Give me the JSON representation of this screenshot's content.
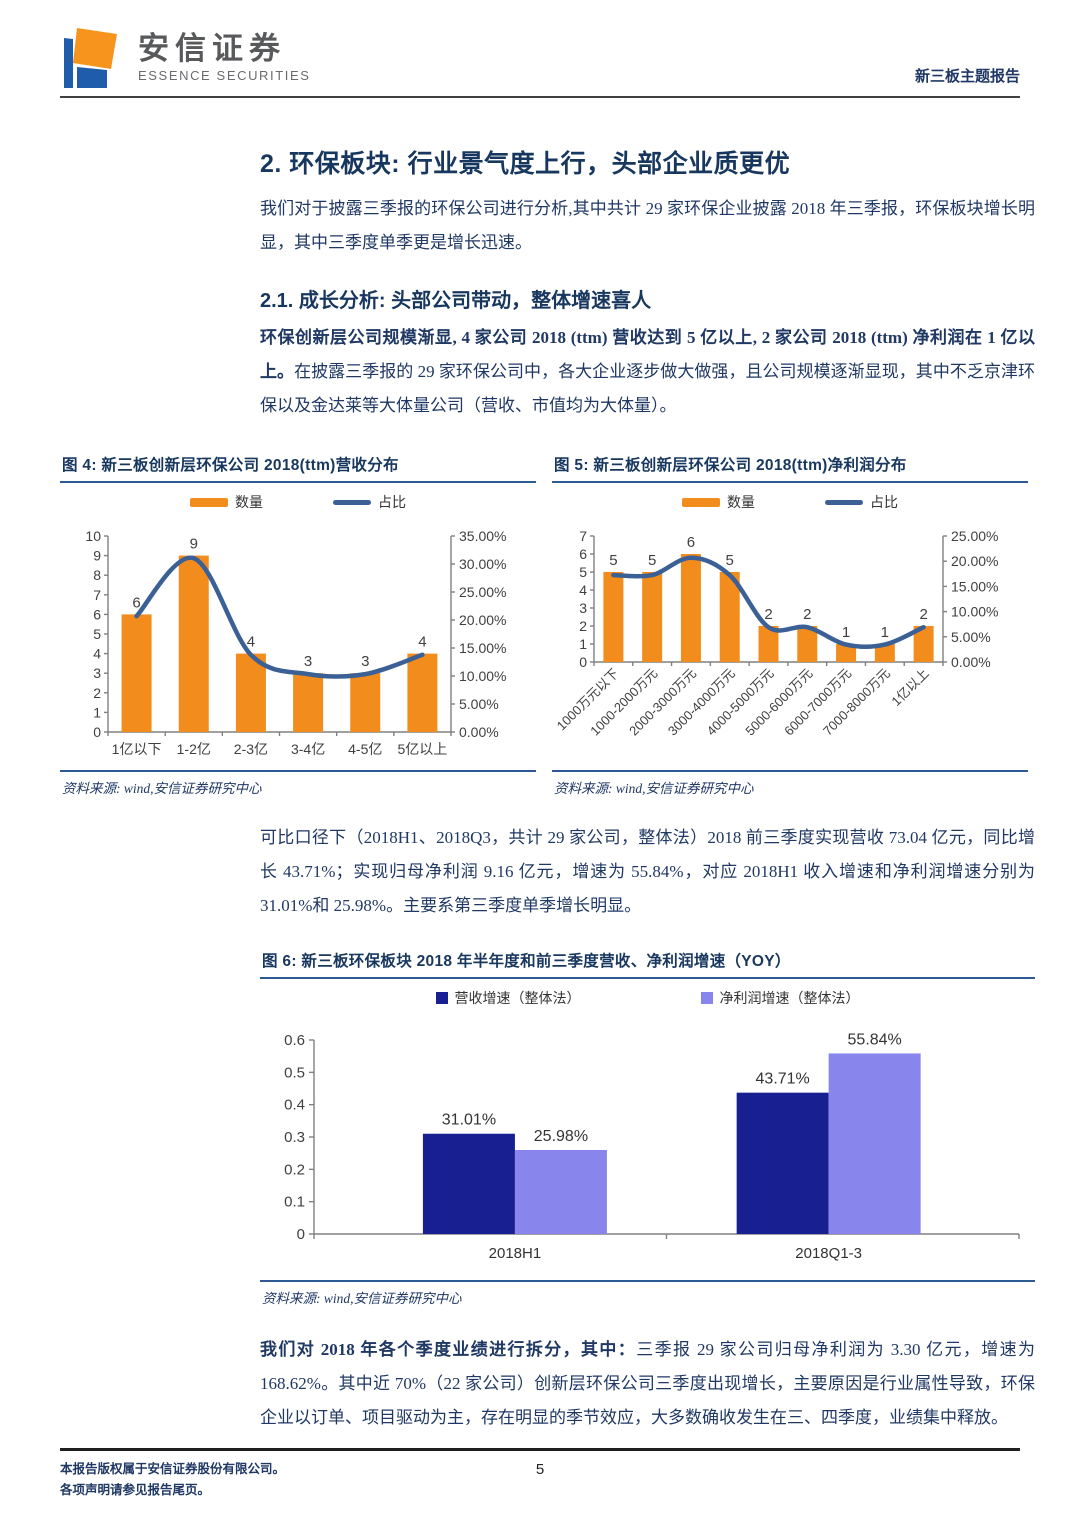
{
  "header": {
    "brand_cn": "安信证券",
    "brand_en": "ESSENCE SECURITIES",
    "report_tag": "新三板主题报告"
  },
  "section": {
    "title": "2. 环保板块: 行业景气度上行，头部企业质更优",
    "intro": "我们对于披露三季报的环保公司进行分析,其中共计 29 家环保企业披露 2018 年三季报，环保板块增长明显，其中三季度单季更是增长迅速。"
  },
  "subsection": {
    "title": "2.1. 成长分析: 头部公司带动，整体增速喜人",
    "lead_bold": "环保创新层公司规模渐显, 4 家公司 2018 (ttm) 营收达到 5 亿以上, 2 家公司 2018 (ttm) 净利润在 1 亿以上。",
    "lead_rest": "在披露三季报的 29 家环保公司中，各大企业逐步做大做强，且公司规模逐渐显现，其中不乏京津环保以及金达莱等大体量公司（营收、市值均为大体量）。"
  },
  "mid_paragraph": "可比口径下（2018H1、2018Q3，共计 29 家公司，整体法）2018 前三季度实现营收 73.04 亿元，同比增长 43.71%；实现归母净利润 9.16 亿元，增速为 55.84%，对应 2018H1 收入增速和净利润增速分别为 31.01%和 25.98%。主要系第三季度单季增长明显。",
  "closing": {
    "bold": "我们对 2018 年各个季度业绩进行拆分，其中：",
    "rest": "三季报 29 家公司归母净利润为 3.30 亿元，增速为 168.62%。其中近 70%（22 家公司）创新层环保公司三季度出现增长，主要原因是行业属性导致，环保企业以订单、项目驱动为主，存在明显的季节效应，大多数确收发生在三、四季度，业绩集中释放。"
  },
  "footer": {
    "copyright_line1": "本报告版权属于安信证券股份有限公司。",
    "copyright_line2": "各项声明请参见报告尾页。",
    "page_number": "5"
  },
  "colors": {
    "accent_navy": "#1F3864",
    "bar_orange": "#F28C1C",
    "line_blue": "#3A6096",
    "revenue_bar_navy": "#181F91",
    "profit_bar_periwinkle": "#8886EC",
    "rule_blue": "#2E5A94"
  },
  "chart_data": [
    {
      "id": "figure-4",
      "type": "bar-line",
      "title": "图 4: 新三板创新层环保公司 2018(ttm)营收分布",
      "legend": [
        "数量",
        "占比"
      ],
      "categories": [
        "1亿以下",
        "1-2亿",
        "2-3亿",
        "3-4亿",
        "4-5亿",
        "5亿以上"
      ],
      "bar_series_name": "数量",
      "bar_values": [
        6,
        9,
        4,
        3,
        3,
        4
      ],
      "line_series_name": "占比",
      "line_values_pct": [
        20.69,
        31.03,
        13.79,
        10.34,
        10.34,
        13.79
      ],
      "left_axis": {
        "min": 0,
        "max": 10,
        "step": 1
      },
      "right_axis": {
        "min": 0,
        "max": 35,
        "step": 5,
        "format": "0.00%"
      },
      "bar_color": "#F28C1C",
      "line_color": "#3A6096",
      "legend_position": "top",
      "grid": false,
      "source": "资料来源: wind,安信证券研究中心"
    },
    {
      "id": "figure-5",
      "type": "bar-line",
      "title": "图 5: 新三板创新层环保公司 2018(ttm)净利润分布",
      "legend": [
        "数量",
        "占比"
      ],
      "categories": [
        "1000万元以下",
        "1000-2000万元",
        "2000-3000万元",
        "3000-4000万元",
        "4000-5000万元",
        "5000-6000万元",
        "6000-7000万元",
        "7000-8000万元",
        "1亿以上"
      ],
      "bar_series_name": "数量",
      "bar_values": [
        5,
        5,
        6,
        5,
        2,
        2,
        1,
        1,
        2
      ],
      "line_series_name": "占比",
      "line_values_pct": [
        17.24,
        17.24,
        20.69,
        17.24,
        6.9,
        6.9,
        3.45,
        3.45,
        6.9
      ],
      "left_axis": {
        "min": 0,
        "max": 7,
        "step": 1
      },
      "right_axis": {
        "min": 0,
        "max": 25,
        "step": 5,
        "format": "0.00%"
      },
      "bar_color": "#F28C1C",
      "line_color": "#3A6096",
      "legend_position": "top",
      "grid": false,
      "source": "资料来源: wind,安信证券研究中心"
    },
    {
      "id": "figure-6",
      "type": "grouped-bar",
      "title": "图 6: 新三板环保板块 2018 年半年度和前三季度营收、净利润增速（YOY）",
      "categories": [
        "2018H1",
        "2018Q1-3"
      ],
      "series": [
        {
          "name": "营收增速（整体法）",
          "values": [
            0.3101,
            0.4371
          ],
          "labels": [
            "31.01%",
            "43.71%"
          ],
          "color": "#181F91"
        },
        {
          "name": "净利润增速（整体法）",
          "values": [
            0.2598,
            0.5584
          ],
          "labels": [
            "25.98%",
            "55.84%"
          ],
          "color": "#8886EC"
        }
      ],
      "y_axis": {
        "min": 0,
        "max": 0.6,
        "step": 0.1
      },
      "ylim": [
        0,
        0.6
      ],
      "legend_position": "top",
      "grid": false,
      "source": "资料来源: wind,安信证券研究中心"
    }
  ]
}
